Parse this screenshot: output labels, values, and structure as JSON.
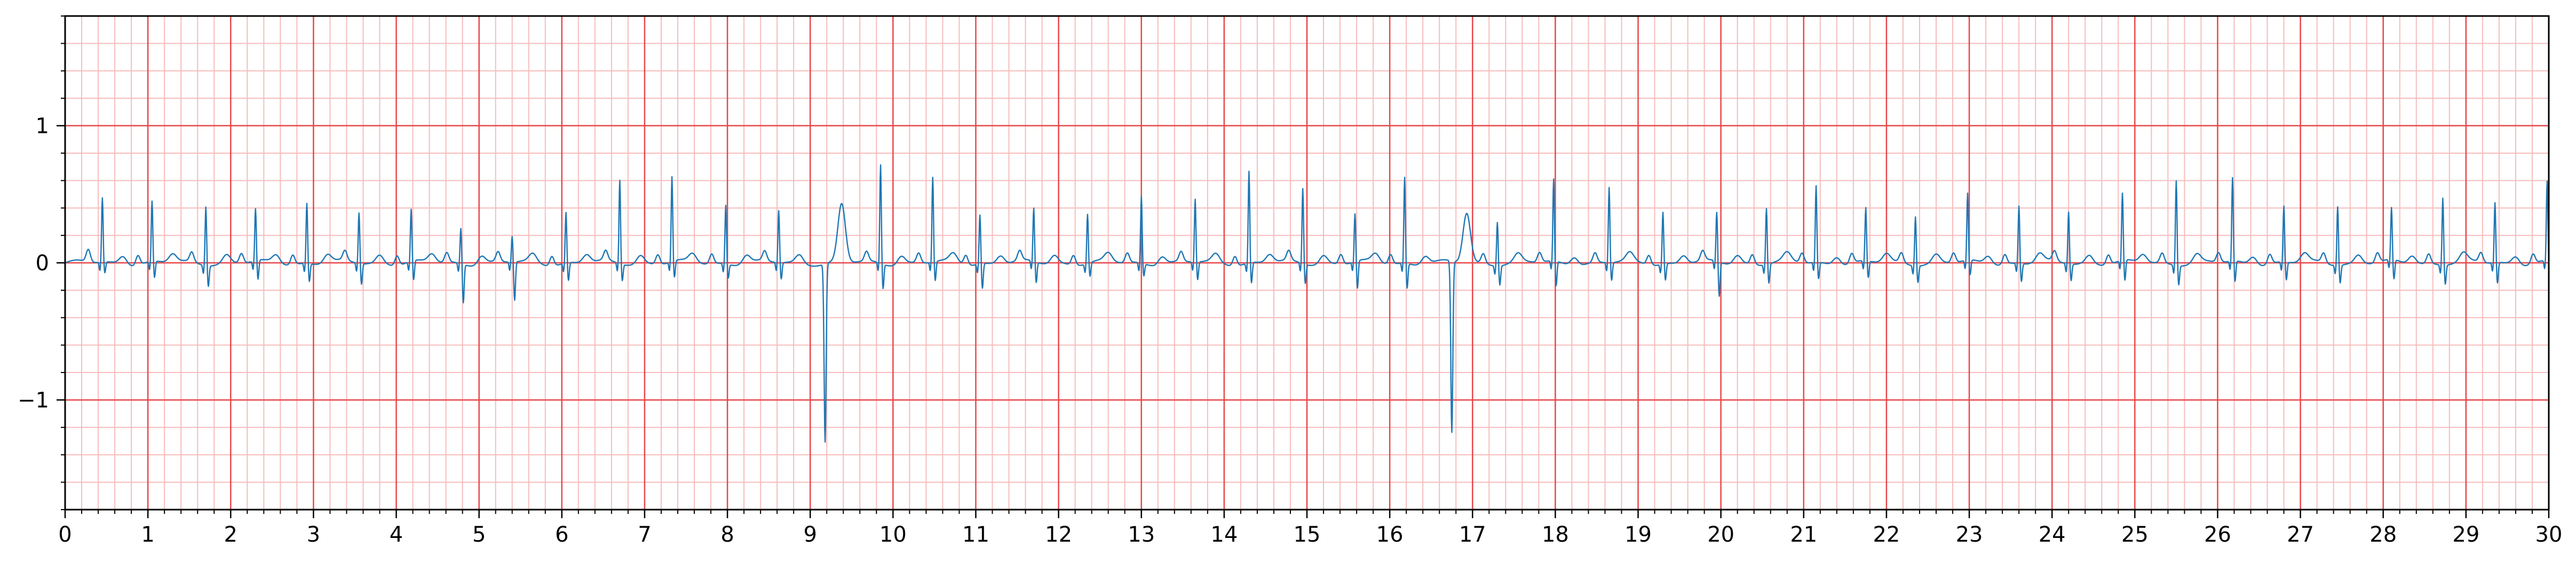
{
  "chart_data": {
    "type": "line",
    "title": "",
    "xlabel": "",
    "ylabel": "",
    "xlim": [
      0,
      30
    ],
    "ylim": [
      -1.8,
      1.8
    ],
    "x_ticks": [
      0,
      1,
      2,
      3,
      4,
      5,
      6,
      7,
      8,
      9,
      10,
      11,
      12,
      13,
      14,
      15,
      16,
      17,
      18,
      19,
      20,
      21,
      22,
      23,
      24,
      25,
      26,
      27,
      28,
      29,
      30
    ],
    "x_tick_labels": [
      "0",
      "1",
      "2",
      "3",
      "4",
      "5",
      "6",
      "7",
      "8",
      "9",
      "10",
      "11",
      "12",
      "13",
      "14",
      "15",
      "16",
      "17",
      "18",
      "19",
      "20",
      "21",
      "22",
      "23",
      "24",
      "25",
      "26",
      "27",
      "28",
      "29",
      "30"
    ],
    "y_ticks": [
      -1,
      0,
      1
    ],
    "y_tick_labels": [
      "−1",
      "0",
      "1"
    ],
    "grid": {
      "major": true,
      "major_x_step": 1.0,
      "major_y_step": 1.0,
      "minor": true,
      "minor_x_step": 0.2,
      "minor_y_step": 0.2
    },
    "colors": {
      "major_grid": "#e8474b",
      "minor_grid": "#f7bcbc",
      "series": "#1f77b4",
      "axes": "#000000"
    },
    "series": [
      {
        "name": "",
        "sample_rate_hz": 20,
        "start_x": 0,
        "step": 0.05,
        "beats": [
          {
            "t": 0.45,
            "r": 0.47,
            "s": -0.08,
            "p": 0.09
          },
          {
            "t": 1.05,
            "r": 0.44,
            "s": -0.12,
            "p": 0.07
          },
          {
            "t": 1.7,
            "r": 0.43,
            "s": -0.15,
            "p": 0.07
          },
          {
            "t": 2.3,
            "r": 0.38,
            "s": -0.14,
            "p": 0.07
          },
          {
            "t": 2.92,
            "r": 0.44,
            "s": -0.13,
            "p": 0.07
          },
          {
            "t": 3.55,
            "r": 0.37,
            "s": -0.15,
            "p": 0.07
          },
          {
            "t": 4.18,
            "r": 0.38,
            "s": -0.14,
            "p": 0.07
          },
          {
            "t": 4.78,
            "r": 0.26,
            "s": -0.28,
            "p": 0.07
          },
          {
            "t": 5.4,
            "r": 0.19,
            "s": -0.28,
            "p": 0.07
          },
          {
            "t": 6.05,
            "r": 0.37,
            "s": -0.13,
            "p": 0.07
          },
          {
            "t": 6.7,
            "r": 0.61,
            "s": -0.12,
            "p": 0.07
          },
          {
            "t": 7.33,
            "r": 0.62,
            "s": -0.12,
            "p": 0.07
          },
          {
            "t": 7.98,
            "r": 0.43,
            "s": -0.1,
            "p": 0.07
          },
          {
            "t": 8.62,
            "r": 0.38,
            "s": -0.12,
            "p": 0.07
          },
          {
            "t": 9.85,
            "r": 0.72,
            "s": -0.18,
            "p": 0.07
          },
          {
            "t": 10.48,
            "r": 0.62,
            "s": -0.14,
            "p": 0.07
          },
          {
            "t": 11.05,
            "r": 0.36,
            "s": -0.18,
            "p": 0.07
          },
          {
            "t": 11.7,
            "r": 0.39,
            "s": -0.15,
            "p": 0.07
          },
          {
            "t": 12.35,
            "r": 0.36,
            "s": -0.1,
            "p": 0.07
          },
          {
            "t": 13.0,
            "r": 0.49,
            "s": -0.09,
            "p": 0.07
          },
          {
            "t": 13.65,
            "r": 0.46,
            "s": -0.13,
            "p": 0.07
          },
          {
            "t": 14.3,
            "r": 0.67,
            "s": -0.15,
            "p": 0.07
          },
          {
            "t": 14.95,
            "r": 0.55,
            "s": -0.14,
            "p": 0.07
          },
          {
            "t": 15.58,
            "r": 0.35,
            "s": -0.2,
            "p": 0.07
          },
          {
            "t": 16.18,
            "r": 0.63,
            "s": -0.18,
            "p": 0.07
          },
          {
            "t": 17.3,
            "r": 0.32,
            "s": -0.14,
            "p": 0.07
          },
          {
            "t": 17.98,
            "r": 0.6,
            "s": -0.18,
            "p": 0.07
          },
          {
            "t": 18.65,
            "r": 0.55,
            "s": -0.13,
            "p": 0.07
          },
          {
            "t": 19.3,
            "r": 0.38,
            "s": -0.12,
            "p": 0.07
          },
          {
            "t": 19.95,
            "r": 0.36,
            "s": -0.25,
            "p": 0.07
          },
          {
            "t": 20.55,
            "r": 0.41,
            "s": -0.14,
            "p": 0.07
          },
          {
            "t": 21.15,
            "r": 0.56,
            "s": -0.12,
            "p": 0.07
          },
          {
            "t": 21.75,
            "r": 0.39,
            "s": -0.12,
            "p": 0.07
          },
          {
            "t": 22.35,
            "r": 0.36,
            "s": -0.12,
            "p": 0.07
          },
          {
            "t": 22.98,
            "r": 0.49,
            "s": -0.11,
            "p": 0.07
          },
          {
            "t": 23.6,
            "r": 0.42,
            "s": -0.13,
            "p": 0.07
          },
          {
            "t": 24.2,
            "r": 0.38,
            "s": -0.12,
            "p": 0.07
          },
          {
            "t": 24.85,
            "r": 0.49,
            "s": -0.15,
            "p": 0.07
          },
          {
            "t": 25.5,
            "r": 0.62,
            "s": -0.14,
            "p": 0.07
          },
          {
            "t": 26.18,
            "r": 0.61,
            "s": -0.15,
            "p": 0.07
          },
          {
            "t": 26.8,
            "r": 0.41,
            "s": -0.13,
            "p": 0.07
          },
          {
            "t": 27.45,
            "r": 0.43,
            "s": -0.13,
            "p": 0.07
          },
          {
            "t": 28.1,
            "r": 0.38,
            "s": -0.14,
            "p": 0.07
          },
          {
            "t": 28.72,
            "r": 0.49,
            "s": -0.14,
            "p": 0.07
          },
          {
            "t": 29.35,
            "r": 0.44,
            "s": -0.15,
            "p": 0.07
          },
          {
            "t": 29.98,
            "r": 0.58,
            "s": -0.1,
            "p": 0.07
          }
        ],
        "ectopic_beats": [
          {
            "t": 9.18,
            "r": 0.05,
            "s": -1.3,
            "wave_peak_x": 9.38,
            "wave_peak_y": 0.42
          },
          {
            "t": 16.75,
            "r": 0.05,
            "s": -1.25,
            "wave_peak_x": 16.93,
            "wave_peak_y": 0.36
          }
        ]
      }
    ]
  }
}
